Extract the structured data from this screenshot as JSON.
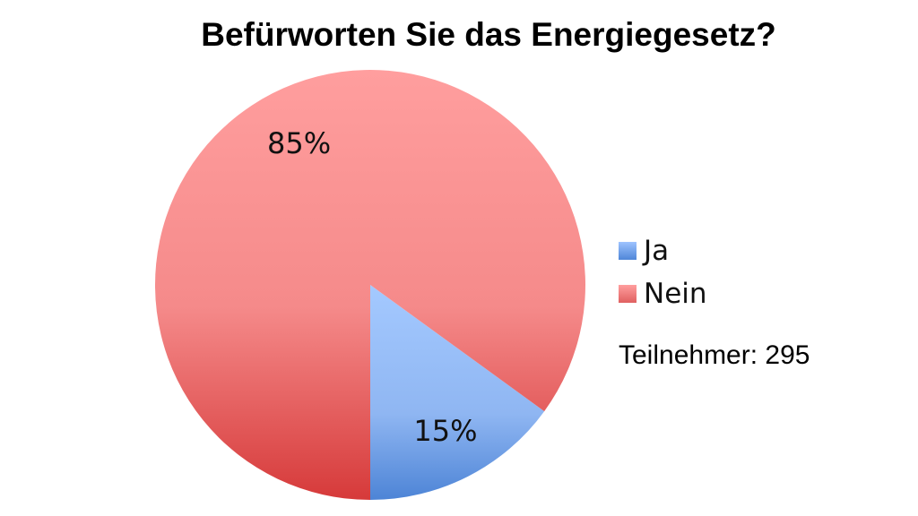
{
  "chart_data": {
    "type": "pie",
    "title": "Befürworten Sie das Energiegesetz?",
    "categories": [
      "Ja",
      "Nein"
    ],
    "values": [
      15,
      85
    ],
    "data_labels": [
      "15%",
      "85%"
    ],
    "colors": [
      "#7aa6e8",
      "#ee7a7a"
    ],
    "legend_position": "right"
  },
  "annotation": "Teilnehmer: 295"
}
